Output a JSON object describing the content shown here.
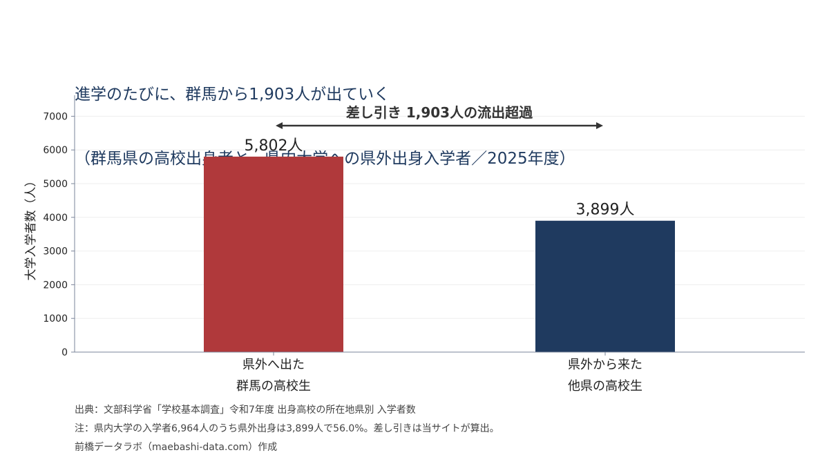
{
  "title": {
    "line1": "進学のたびに、群馬から1,903人が出ていく",
    "line2": "（群馬県の高校出身者と、県内大学への県外出身入学者／2025年度）"
  },
  "annotation": "差し引き 1,903人の流出超過",
  "notes": {
    "source": "出典：文部科学省「学校基本調査」令和7年度 出身高校の所在地県別 入学者数",
    "note": "注：県内大学の入学者6,964人のうち県外出身は3,899人で56.0%。差し引きは当サイトが算出。",
    "credit": "前橋データラボ（maebashi-data.com）作成"
  },
  "colors": {
    "out": "#b0393b",
    "in": "#1f3a5f",
    "axis": "#7a8499",
    "grid": "#eeeeee"
  },
  "chart_data": {
    "type": "bar",
    "ylabel": "大学入学者数（人）",
    "ylim": [
      0,
      7600
    ],
    "yticks": [
      "0",
      "1000",
      "2000",
      "3000",
      "4000",
      "5000",
      "6000",
      "7000"
    ],
    "grid": true,
    "categories": [
      {
        "line1": "県外へ出た",
        "line2": "群馬の高校生"
      },
      {
        "line1": "県外から来た",
        "line2": "他県の高校生"
      }
    ],
    "values": [
      5802,
      3899
    ],
    "value_labels": [
      "5,802人",
      "3,899人"
    ],
    "difference": 1903
  }
}
